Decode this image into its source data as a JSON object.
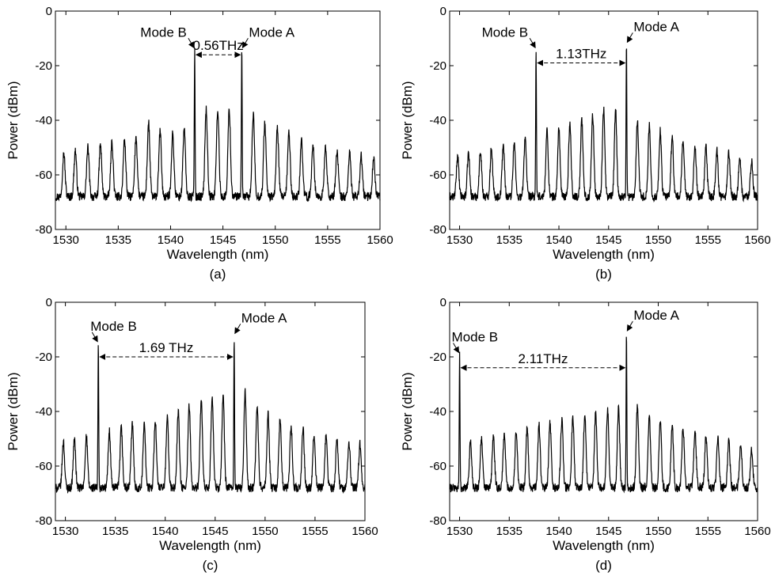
{
  "chart_data": [
    {
      "type": "line",
      "panel": "(a)",
      "xlabel": "Wavelength (nm)",
      "ylabel": "Power (dBm)",
      "xlim": [
        1529,
        1560
      ],
      "ylim": [
        -80,
        0
      ],
      "xticks": [
        1530,
        1535,
        1540,
        1545,
        1550,
        1555,
        1560
      ],
      "yticks": [
        0,
        -20,
        -40,
        -60,
        -80
      ],
      "grid": false,
      "peaks": [
        {
          "x": 1529.8,
          "y": -52
        },
        {
          "x": 1530.9,
          "y": -51
        },
        {
          "x": 1532.1,
          "y": -50
        },
        {
          "x": 1533.3,
          "y": -49
        },
        {
          "x": 1534.4,
          "y": -48
        },
        {
          "x": 1535.6,
          "y": -47
        },
        {
          "x": 1536.7,
          "y": -46
        },
        {
          "x": 1537.9,
          "y": -41
        },
        {
          "x": 1539.0,
          "y": -44
        },
        {
          "x": 1540.2,
          "y": -45
        },
        {
          "x": 1541.3,
          "y": -43
        },
        {
          "x": 1542.3,
          "y": -14
        },
        {
          "x": 1543.4,
          "y": -36
        },
        {
          "x": 1544.5,
          "y": -36
        },
        {
          "x": 1545.6,
          "y": -36
        },
        {
          "x": 1546.8,
          "y": -14
        },
        {
          "x": 1547.9,
          "y": -38
        },
        {
          "x": 1549.0,
          "y": -41
        },
        {
          "x": 1550.2,
          "y": -43
        },
        {
          "x": 1551.3,
          "y": -44
        },
        {
          "x": 1552.5,
          "y": -47
        },
        {
          "x": 1553.6,
          "y": -49
        },
        {
          "x": 1554.8,
          "y": -50
        },
        {
          "x": 1555.9,
          "y": -51
        },
        {
          "x": 1557.1,
          "y": -52
        },
        {
          "x": 1558.2,
          "y": -53
        },
        {
          "x": 1559.4,
          "y": -54
        }
      ],
      "modeB": {
        "label": "Mode B",
        "x": 1542.3,
        "y": -14
      },
      "modeA": {
        "label": "Mode A",
        "x": 1546.8,
        "y": -14
      },
      "spacing": {
        "label": "0.56THz",
        "y": -16
      }
    },
    {
      "type": "line",
      "panel": "(b)",
      "xlabel": "Wavelength (nm)",
      "ylabel": "Power (dBm)",
      "xlim": [
        1529,
        1560
      ],
      "ylim": [
        -80,
        0
      ],
      "xticks": [
        1530,
        1535,
        1540,
        1545,
        1550,
        1555,
        1560
      ],
      "yticks": [
        0,
        -20,
        -40,
        -60,
        -80
      ],
      "grid": false,
      "peaks": [
        {
          "x": 1529.8,
          "y": -53
        },
        {
          "x": 1530.9,
          "y": -52
        },
        {
          "x": 1532.1,
          "y": -51
        },
        {
          "x": 1533.2,
          "y": -50
        },
        {
          "x": 1534.4,
          "y": -49
        },
        {
          "x": 1535.5,
          "y": -48
        },
        {
          "x": 1536.6,
          "y": -46
        },
        {
          "x": 1537.7,
          "y": -14
        },
        {
          "x": 1538.8,
          "y": -44
        },
        {
          "x": 1540.0,
          "y": -43
        },
        {
          "x": 1541.1,
          "y": -41
        },
        {
          "x": 1542.3,
          "y": -40
        },
        {
          "x": 1543.4,
          "y": -38
        },
        {
          "x": 1544.5,
          "y": -36
        },
        {
          "x": 1545.7,
          "y": -36
        },
        {
          "x": 1546.8,
          "y": -12
        },
        {
          "x": 1547.9,
          "y": -40
        },
        {
          "x": 1549.1,
          "y": -42
        },
        {
          "x": 1550.2,
          "y": -44
        },
        {
          "x": 1551.4,
          "y": -46
        },
        {
          "x": 1552.5,
          "y": -47
        },
        {
          "x": 1553.7,
          "y": -49
        },
        {
          "x": 1554.8,
          "y": -50
        },
        {
          "x": 1555.9,
          "y": -51
        },
        {
          "x": 1557.1,
          "y": -52
        },
        {
          "x": 1558.2,
          "y": -54
        },
        {
          "x": 1559.4,
          "y": -55
        }
      ],
      "modeB": {
        "label": "Mode B",
        "x": 1537.7,
        "y": -14
      },
      "modeA": {
        "label": "Mode A",
        "x": 1546.8,
        "y": -12
      },
      "spacing": {
        "label": "1.13THz",
        "y": -19
      }
    },
    {
      "type": "line",
      "panel": "(c)",
      "xlabel": "Wavelength (nm)",
      "ylabel": "Power (dBm)",
      "xlim": [
        1529,
        1560
      ],
      "ylim": [
        -80,
        0
      ],
      "xticks": [
        1530,
        1535,
        1540,
        1545,
        1550,
        1555,
        1560
      ],
      "yticks": [
        0,
        -20,
        -40,
        -60,
        -80
      ],
      "grid": false,
      "peaks": [
        {
          "x": 1529.8,
          "y": -51
        },
        {
          "x": 1530.9,
          "y": -50
        },
        {
          "x": 1532.1,
          "y": -49
        },
        {
          "x": 1533.3,
          "y": -15
        },
        {
          "x": 1534.4,
          "y": -47
        },
        {
          "x": 1535.6,
          "y": -46
        },
        {
          "x": 1536.7,
          "y": -45
        },
        {
          "x": 1537.9,
          "y": -44
        },
        {
          "x": 1539.0,
          "y": -43
        },
        {
          "x": 1540.2,
          "y": -42
        },
        {
          "x": 1541.3,
          "y": -40
        },
        {
          "x": 1542.4,
          "y": -38
        },
        {
          "x": 1543.6,
          "y": -36
        },
        {
          "x": 1544.7,
          "y": -35
        },
        {
          "x": 1545.8,
          "y": -34
        },
        {
          "x": 1546.9,
          "y": -12
        },
        {
          "x": 1548.0,
          "y": -33
        },
        {
          "x": 1549.2,
          "y": -38
        },
        {
          "x": 1550.3,
          "y": -41
        },
        {
          "x": 1551.5,
          "y": -43
        },
        {
          "x": 1552.6,
          "y": -45
        },
        {
          "x": 1553.8,
          "y": -46
        },
        {
          "x": 1554.9,
          "y": -48
        },
        {
          "x": 1556.1,
          "y": -49
        },
        {
          "x": 1557.2,
          "y": -50
        },
        {
          "x": 1558.4,
          "y": -51
        },
        {
          "x": 1559.5,
          "y": -52
        }
      ],
      "modeB": {
        "label": "Mode B",
        "x": 1533.3,
        "y": -15
      },
      "modeA": {
        "label": "Mode A",
        "x": 1546.9,
        "y": -12
      },
      "spacing": {
        "label": "1.69 THz",
        "y": -20
      }
    },
    {
      "type": "line",
      "panel": "(d)",
      "xlabel": "Wavelength (nm)",
      "ylabel": "Power (dBm)",
      "xlim": [
        1529,
        1560
      ],
      "ylim": [
        -80,
        0
      ],
      "xticks": [
        1530,
        1535,
        1540,
        1545,
        1550,
        1555,
        1560
      ],
      "yticks": [
        0,
        -20,
        -40,
        -60,
        -80
      ],
      "grid": false,
      "peaks": [
        {
          "x": 1530.0,
          "y": -19
        },
        {
          "x": 1531.1,
          "y": -51
        },
        {
          "x": 1532.2,
          "y": -50
        },
        {
          "x": 1533.4,
          "y": -49
        },
        {
          "x": 1534.5,
          "y": -48
        },
        {
          "x": 1535.7,
          "y": -47
        },
        {
          "x": 1536.8,
          "y": -46
        },
        {
          "x": 1538.0,
          "y": -45
        },
        {
          "x": 1539.1,
          "y": -44
        },
        {
          "x": 1540.3,
          "y": -43
        },
        {
          "x": 1541.4,
          "y": -42
        },
        {
          "x": 1542.6,
          "y": -41
        },
        {
          "x": 1543.7,
          "y": -40
        },
        {
          "x": 1544.9,
          "y": -39
        },
        {
          "x": 1546.0,
          "y": -38
        },
        {
          "x": 1546.8,
          "y": -11
        },
        {
          "x": 1547.9,
          "y": -38
        },
        {
          "x": 1549.1,
          "y": -41
        },
        {
          "x": 1550.2,
          "y": -43
        },
        {
          "x": 1551.4,
          "y": -45
        },
        {
          "x": 1552.5,
          "y": -46
        },
        {
          "x": 1553.7,
          "y": -47
        },
        {
          "x": 1554.8,
          "y": -49
        },
        {
          "x": 1556.0,
          "y": -50
        },
        {
          "x": 1557.1,
          "y": -51
        },
        {
          "x": 1558.3,
          "y": -52
        },
        {
          "x": 1559.4,
          "y": -54
        }
      ],
      "modeB": {
        "label": "Mode B",
        "x": 1530.0,
        "y": -19
      },
      "modeA": {
        "label": "Mode A",
        "x": 1546.8,
        "y": -11
      },
      "spacing": {
        "label": "2.11THz",
        "y": -24
      }
    }
  ]
}
